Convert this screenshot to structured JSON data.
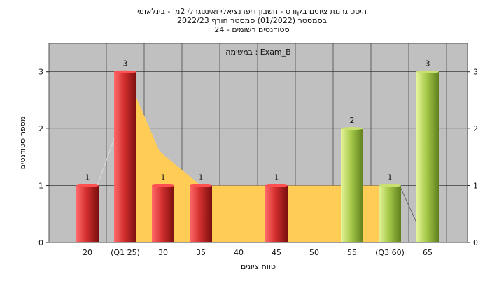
{
  "title_lines": [
    "היסטוגרמת ציונים בקורס - חשבון דיפרנציאלי ואינטגרלי 2מ' - בינלאומי",
    "בסמסטר  (01/2022)  סמסטר חורף  2022/23",
    "סטודנטים רשומים - 24"
  ],
  "chart_data": {
    "type": "bar",
    "annotation": "במשימה : Exam_B",
    "xlabel": "טווח ציונים",
    "ylabel": "מספר סטודנטים",
    "ylim": [
      0,
      3.5
    ],
    "yticks": [
      "0",
      "1",
      "2",
      "3"
    ],
    "grid": true,
    "categories": [
      "20",
      "(Q1 25)",
      "30",
      "35",
      "40",
      "45",
      "50",
      "55",
      "(Q3 60)",
      "65"
    ],
    "values": [
      1,
      3,
      1,
      1,
      0,
      1,
      0,
      2,
      1,
      3
    ],
    "data_labels": [
      "1",
      "3",
      "1",
      "1",
      "",
      "1",
      "",
      "2",
      "1",
      "3"
    ],
    "bar_colors": [
      "red",
      "red",
      "red",
      "red",
      "red",
      "red",
      "red",
      "green",
      "green",
      "green"
    ],
    "box_area": {
      "q1": "(Q1 25)",
      "q3": "(Q3 60)",
      "level": 1,
      "peak": 3
    },
    "colors": {
      "plot_bg": "#c0c0c0",
      "red_bar": "#d42f2f",
      "green_bar": "#a6c94a",
      "area_fill": "#ffcc55"
    }
  }
}
